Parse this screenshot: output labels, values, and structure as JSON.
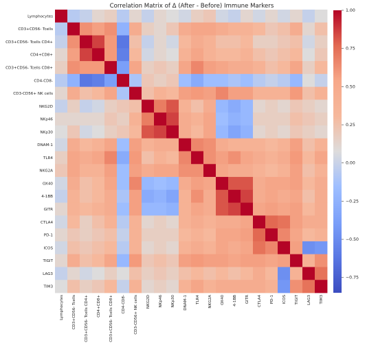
{
  "chart_data": {
    "type": "heatmap",
    "title": "Correlation Matrix of Δ (After - Before) Immune Markers",
    "labels": [
      "Lymphocytes",
      "CD3+CD56- Tcells",
      "CD3+CD56- Tcells CD4+",
      "CD4+CD8+",
      "CD3+CD56- Tcells CD8+",
      "CD4-CD8-",
      "CD3-CD56+ NK cells",
      "NKG2D",
      "NKp46",
      "NKp30",
      "DNAM-1",
      "TLR4",
      "NKG2A",
      "OX40",
      "4-1BB",
      "GITR",
      "CTLA4",
      "PD-1",
      "ICOS",
      "TIGIT",
      "LAG3",
      "TIM3"
    ],
    "matrix": [
      [
        1.0,
        -0.15,
        -0.1,
        0.05,
        0.1,
        -0.15,
        0.05,
        -0.1,
        0.05,
        0.0,
        -0.05,
        0.1,
        0.15,
        -0.05,
        -0.1,
        0.05,
        -0.05,
        0.05,
        -0.05,
        0.05,
        -0.1,
        0.0
      ],
      [
        -0.15,
        1.0,
        0.55,
        0.45,
        0.55,
        -0.35,
        0.35,
        0.1,
        0.05,
        0.15,
        0.35,
        0.4,
        0.4,
        0.35,
        0.3,
        0.3,
        0.25,
        0.15,
        0.2,
        0.35,
        0.05,
        0.2
      ],
      [
        -0.1,
        0.55,
        1.0,
        0.85,
        0.5,
        -0.75,
        0.2,
        -0.1,
        0.05,
        -0.05,
        0.25,
        0.35,
        0.3,
        0.2,
        0.2,
        0.25,
        0.1,
        0.1,
        0.15,
        0.2,
        -0.05,
        0.1
      ],
      [
        0.05,
        0.45,
        0.85,
        1.0,
        0.5,
        -0.7,
        0.25,
        -0.05,
        0.05,
        0.0,
        0.3,
        0.4,
        0.3,
        0.25,
        0.25,
        0.3,
        0.2,
        0.15,
        0.2,
        0.25,
        0.0,
        0.15
      ],
      [
        0.1,
        0.55,
        0.5,
        0.5,
        1.0,
        -0.5,
        0.4,
        0.1,
        0.15,
        0.1,
        0.4,
        0.6,
        0.45,
        0.4,
        0.35,
        0.35,
        0.3,
        0.2,
        0.25,
        0.4,
        0.1,
        0.25
      ],
      [
        -0.15,
        -0.35,
        -0.75,
        -0.7,
        -0.5,
        1.0,
        -0.2,
        0.15,
        0.1,
        0.15,
        -0.25,
        -0.4,
        -0.25,
        -0.25,
        -0.2,
        -0.25,
        -0.15,
        -0.1,
        -0.15,
        -0.3,
        0.0,
        -0.1
      ],
      [
        0.05,
        0.35,
        0.2,
        0.25,
        0.4,
        -0.2,
        1.0,
        0.2,
        0.3,
        0.25,
        0.45,
        0.5,
        0.45,
        0.6,
        0.45,
        0.45,
        0.3,
        0.3,
        0.3,
        0.5,
        0.2,
        0.3
      ],
      [
        -0.1,
        0.1,
        -0.1,
        -0.05,
        0.1,
        0.15,
        0.2,
        1.0,
        0.65,
        0.8,
        0.3,
        0.2,
        0.35,
        -0.3,
        -0.4,
        -0.3,
        0.05,
        0.1,
        0.05,
        0.15,
        0.1,
        0.05
      ],
      [
        0.05,
        0.05,
        0.05,
        0.05,
        0.15,
        0.1,
        0.3,
        0.65,
        1.0,
        0.85,
        0.35,
        0.3,
        0.4,
        -0.25,
        -0.35,
        -0.3,
        0.1,
        0.1,
        0.1,
        0.2,
        0.15,
        0.1
      ],
      [
        0.0,
        0.15,
        -0.05,
        0.0,
        0.1,
        0.15,
        0.25,
        0.8,
        0.85,
        1.0,
        0.35,
        0.25,
        0.4,
        -0.3,
        -0.45,
        -0.35,
        0.05,
        0.1,
        0.05,
        0.15,
        0.1,
        0.05
      ],
      [
        -0.05,
        0.35,
        0.25,
        0.3,
        0.4,
        -0.25,
        0.45,
        0.3,
        0.35,
        0.35,
        1.0,
        0.6,
        0.55,
        0.35,
        0.3,
        0.3,
        0.3,
        0.25,
        0.3,
        0.45,
        0.2,
        0.3
      ],
      [
        0.1,
        0.4,
        0.35,
        0.4,
        0.6,
        -0.4,
        0.5,
        0.2,
        0.3,
        0.25,
        0.6,
        1.0,
        0.55,
        0.45,
        0.55,
        0.4,
        0.35,
        0.3,
        0.35,
        0.5,
        0.25,
        0.4
      ],
      [
        0.15,
        0.4,
        0.3,
        0.3,
        0.45,
        -0.25,
        0.45,
        0.35,
        0.4,
        0.4,
        0.55,
        0.55,
        1.0,
        0.4,
        0.35,
        0.35,
        0.3,
        0.25,
        0.3,
        0.45,
        0.2,
        0.3
      ],
      [
        -0.05,
        0.35,
        0.2,
        0.25,
        0.4,
        -0.25,
        0.6,
        -0.3,
        -0.25,
        -0.3,
        0.35,
        0.45,
        0.4,
        1.0,
        0.8,
        0.8,
        0.35,
        0.4,
        0.4,
        0.45,
        0.25,
        0.35
      ],
      [
        -0.1,
        0.3,
        0.2,
        0.25,
        0.35,
        -0.2,
        0.45,
        -0.4,
        -0.35,
        -0.45,
        0.3,
        0.55,
        0.35,
        0.8,
        1.0,
        0.85,
        0.35,
        0.4,
        0.35,
        0.4,
        0.2,
        0.35
      ],
      [
        0.05,
        0.3,
        0.25,
        0.3,
        0.35,
        -0.25,
        0.45,
        -0.3,
        -0.3,
        -0.35,
        0.3,
        0.4,
        0.35,
        0.8,
        0.85,
        1.0,
        0.4,
        0.45,
        0.4,
        0.45,
        0.25,
        0.35
      ],
      [
        -0.05,
        0.25,
        0.1,
        0.2,
        0.3,
        -0.15,
        0.3,
        0.05,
        0.1,
        0.05,
        0.3,
        0.35,
        0.3,
        0.35,
        0.35,
        0.4,
        1.0,
        0.75,
        0.7,
        0.45,
        0.35,
        0.35
      ],
      [
        0.05,
        0.15,
        0.1,
        0.15,
        0.2,
        -0.1,
        0.3,
        0.1,
        0.1,
        0.1,
        0.25,
        0.3,
        0.25,
        0.4,
        0.4,
        0.45,
        0.75,
        1.0,
        0.6,
        0.4,
        0.25,
        0.3
      ],
      [
        -0.05,
        0.2,
        0.15,
        0.2,
        0.25,
        -0.15,
        0.3,
        0.05,
        0.1,
        0.05,
        0.3,
        0.35,
        0.3,
        0.4,
        0.35,
        0.4,
        0.7,
        0.6,
        1.0,
        0.45,
        -0.6,
        -0.55
      ],
      [
        0.05,
        0.35,
        0.2,
        0.25,
        0.4,
        -0.3,
        0.5,
        0.15,
        0.2,
        0.15,
        0.45,
        0.5,
        0.45,
        0.45,
        0.4,
        0.45,
        0.45,
        0.4,
        0.45,
        1.0,
        0.3,
        0.55
      ],
      [
        -0.1,
        0.05,
        -0.05,
        0.0,
        0.1,
        0.0,
        0.2,
        0.1,
        0.15,
        0.1,
        0.2,
        0.25,
        0.2,
        0.25,
        0.2,
        0.25,
        0.35,
        0.25,
        -0.6,
        0.3,
        1.0,
        0.7
      ],
      [
        0.0,
        0.2,
        0.1,
        0.15,
        0.25,
        -0.1,
        0.3,
        0.05,
        0.1,
        0.05,
        0.3,
        0.4,
        0.3,
        0.35,
        0.35,
        0.35,
        0.35,
        0.3,
        -0.55,
        0.55,
        0.7,
        1.0
      ]
    ],
    "vmin": -0.85,
    "vmax": 1.0,
    "colormap": "coolwarm",
    "colorbar_ticks": [
      1.0,
      0.75,
      0.5,
      0.25,
      0.0,
      -0.25,
      -0.5,
      -0.75
    ],
    "colorbar_tick_labels": [
      "1.00",
      "0.75",
      "0.50",
      "0.25",
      "0.00",
      "−0.25",
      "−0.50",
      "−0.75"
    ],
    "grid": false
  }
}
